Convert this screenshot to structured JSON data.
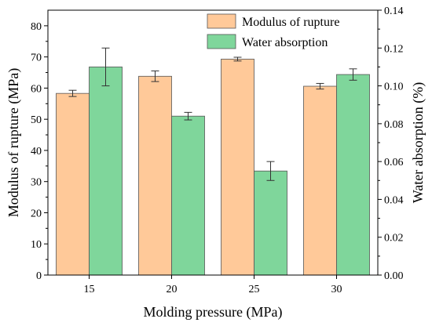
{
  "chart_data": {
    "type": "bar",
    "categories": [
      "15",
      "20",
      "25",
      "30"
    ],
    "xlabel": "Molding pressure (MPa)",
    "ylabel": "Modulus of rupture (MPa)",
    "y2label": "Water absorption (%)",
    "ylim": [
      0,
      85
    ],
    "y2lim": [
      0,
      0.14
    ],
    "yticks": [
      "0",
      "10",
      "20",
      "30",
      "40",
      "50",
      "60",
      "70",
      "80"
    ],
    "y2ticks": [
      "0.00",
      "0.02",
      "0.04",
      "0.06",
      "0.08",
      "0.10",
      "0.12",
      "0.14"
    ],
    "legend_position": "top-right",
    "series": [
      {
        "name": "Modulus of rupture",
        "axis": "left",
        "color": "#ffc999",
        "values": [
          58.3,
          63.8,
          69.3,
          60.6
        ],
        "errors": [
          1.0,
          1.7,
          0.6,
          0.9
        ]
      },
      {
        "name": "Water absorption",
        "axis": "right",
        "color": "#7fd69b",
        "values": [
          0.11,
          0.084,
          0.055,
          0.106
        ],
        "errors": [
          0.01,
          0.002,
          0.005,
          0.003
        ]
      }
    ]
  }
}
